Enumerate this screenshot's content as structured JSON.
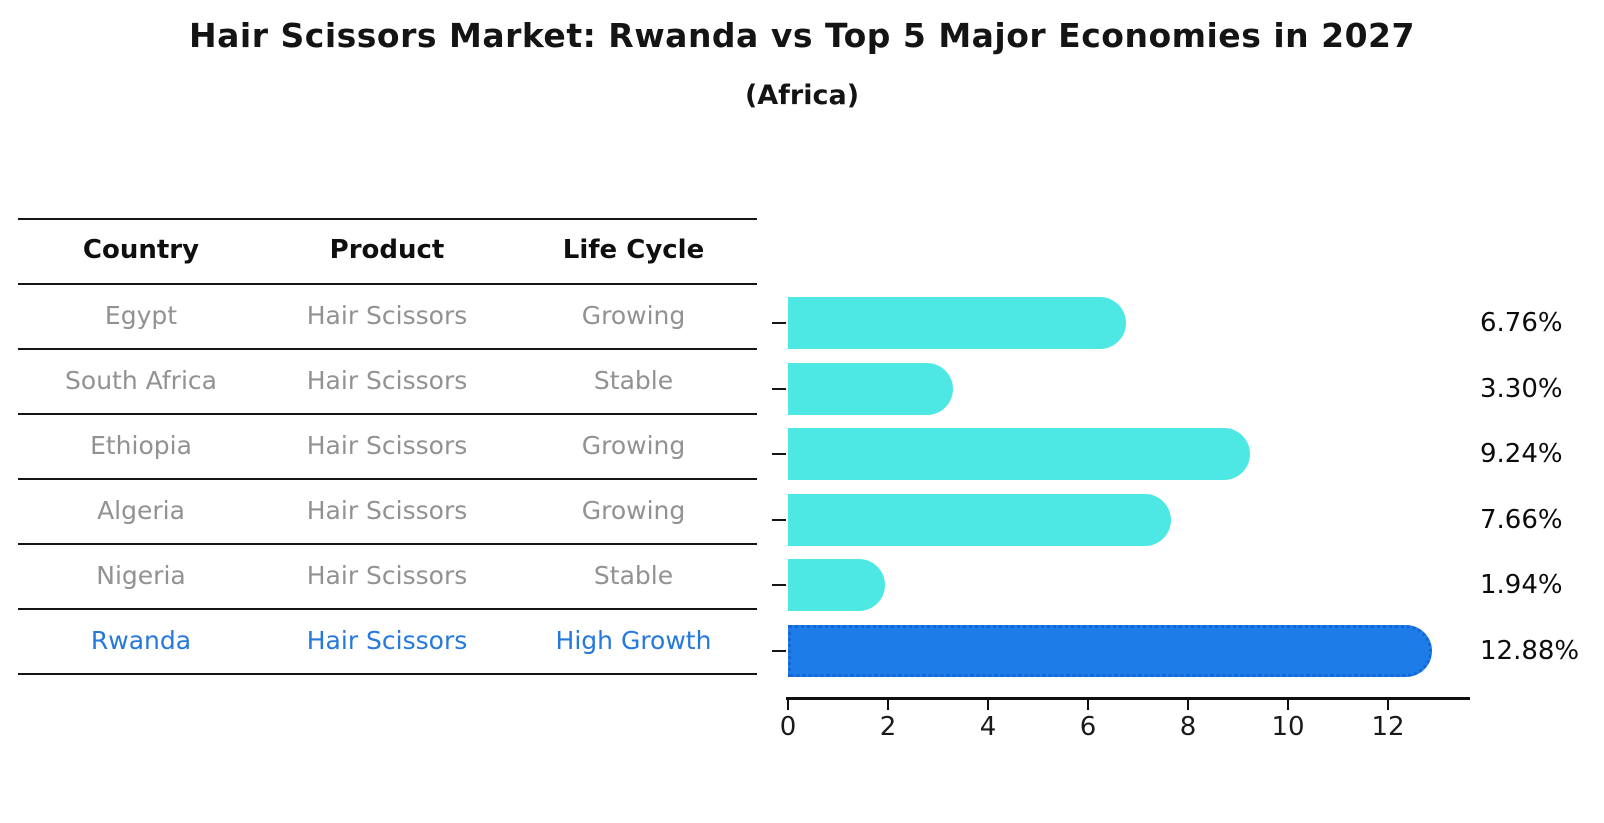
{
  "title": "Hair Scissors Market: Rwanda vs Top 5 Major Economies in 2027",
  "subtitle": "(Africa)",
  "table": {
    "headers": [
      "Country",
      "Product",
      "Life Cycle"
    ],
    "rows": [
      {
        "country": "Egypt",
        "product": "Hair Scissors",
        "life_cycle": "Growing"
      },
      {
        "country": "South Africa",
        "product": "Hair Scissors",
        "life_cycle": "Stable"
      },
      {
        "country": "Ethiopia",
        "product": "Hair Scissors",
        "life_cycle": "Growing"
      },
      {
        "country": "Algeria",
        "product": "Hair Scissors",
        "life_cycle": "Growing"
      },
      {
        "country": "Nigeria",
        "product": "Hair Scissors",
        "life_cycle": "Stable"
      },
      {
        "country": "Rwanda",
        "product": "Hair Scissors",
        "life_cycle": "High Growth"
      }
    ],
    "highlighted_row": "Rwanda"
  },
  "chart_data": {
    "type": "bar",
    "orientation": "horizontal",
    "title": "Hair Scissors Market: Rwanda vs Top 5 Major Economies in 2027 (Africa)",
    "categories": [
      "Egypt",
      "South Africa",
      "Ethiopia",
      "Algeria",
      "Nigeria",
      "Rwanda"
    ],
    "values": [
      6.76,
      3.3,
      9.24,
      7.66,
      1.94,
      12.88
    ],
    "labels": [
      "6.76%",
      "3.30%",
      "9.24%",
      "7.66%",
      "1.94%",
      "12.88%"
    ],
    "x_ticks": [
      0,
      2,
      4,
      6,
      8,
      10,
      12
    ],
    "xlim": [
      0,
      13.6
    ],
    "grid": false,
    "legend": false,
    "bar_color": "#4de8e4",
    "highlight_color": "#1e7ce9",
    "highlight_border_color": "#1465d6",
    "highlight_index": 5
  },
  "colors": {
    "background": "#ffffff",
    "text": "#141414",
    "muted_text": "#929292",
    "highlight_text": "#2579dc",
    "table_line": "#151515"
  }
}
